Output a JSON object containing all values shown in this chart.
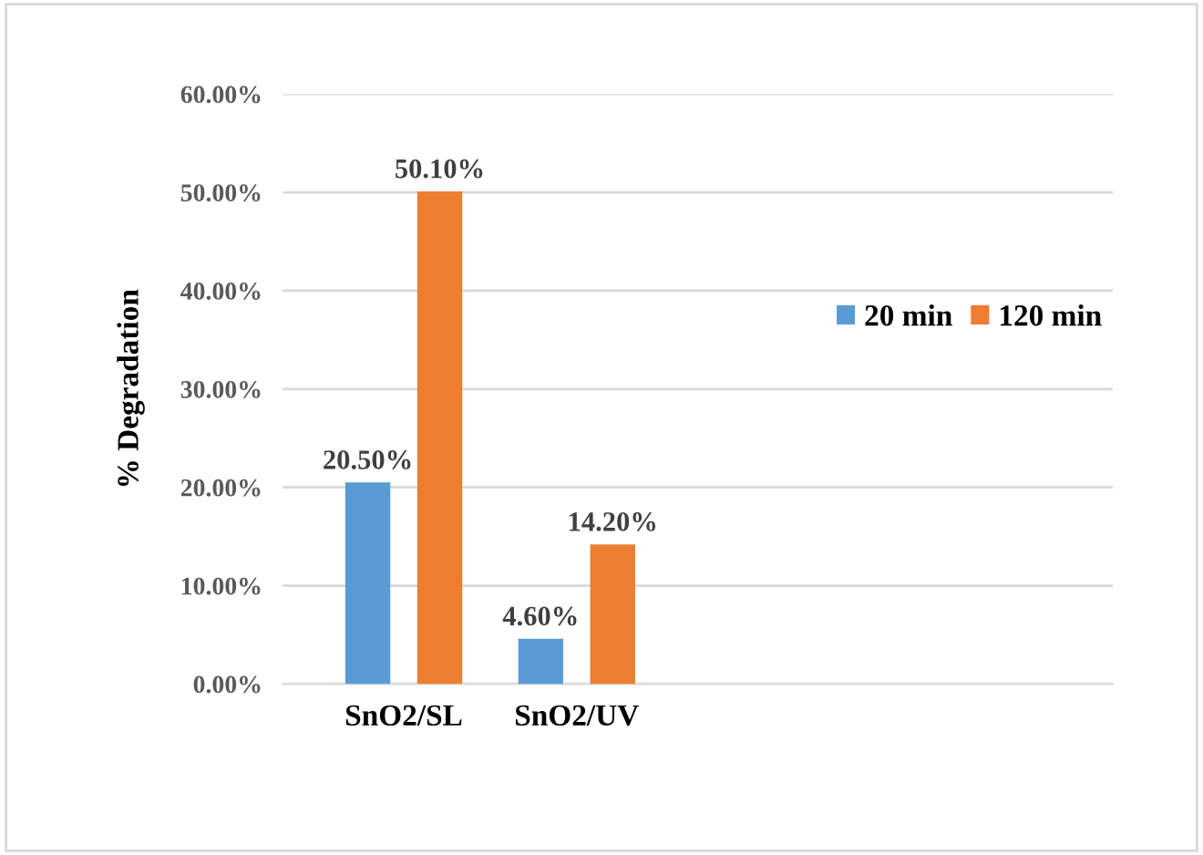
{
  "chart_data": {
    "type": "bar",
    "ylabel": "% Degradation",
    "categories": [
      "SnO2/SL",
      "SnO2/UV"
    ],
    "series": [
      {
        "name": "20 min",
        "color": "#5b9bd5",
        "values": [
          20.5,
          4.6
        ],
        "value_labels": [
          "20.50%",
          "4.60%"
        ]
      },
      {
        "name": "120 min",
        "color": "#ed7d31",
        "values": [
          50.1,
          14.2
        ],
        "value_labels": [
          "50.10%",
          "14.20%"
        ]
      }
    ],
    "ylim": [
      0,
      60
    ],
    "yticks": [
      {
        "value": 0,
        "label": "0.00%"
      },
      {
        "value": 10,
        "label": "10.00%"
      },
      {
        "value": 20,
        "label": "20.00%"
      },
      {
        "value": 30,
        "label": "30.00%"
      },
      {
        "value": 40,
        "label": "40.00%"
      },
      {
        "value": 50,
        "label": "50.00%"
      },
      {
        "value": 60,
        "label": "60.00%"
      }
    ],
    "grid": "y",
    "legend": "right"
  }
}
